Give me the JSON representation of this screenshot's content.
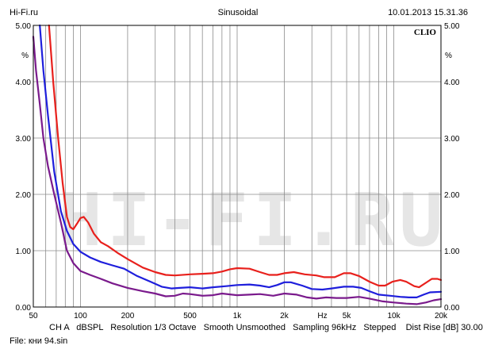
{
  "header": {
    "left": "Hi-Fi.ru",
    "center": "Sinusoidal",
    "right": "10.01.2013 15.31.36"
  },
  "brand": "CLIO",
  "watermark": "HI-FI.RU",
  "footer": {
    "settings": "CH A   dBSPL   Resolution 1/3 Octave   Smooth Unsmoothed   Sampling 96kHz   Stepped    Dist Rise [dB] 30.00",
    "file": "File: кни 94.sin"
  },
  "chart_data": {
    "type": "line",
    "x_scale": "log",
    "xlim": [
      50,
      20000
    ],
    "ylim": [
      0,
      5
    ],
    "x_ticks": [
      {
        "value": 50,
        "label": "50"
      },
      {
        "value": 100,
        "label": "100"
      },
      {
        "value": 200,
        "label": "200"
      },
      {
        "value": 500,
        "label": "500"
      },
      {
        "value": 1000,
        "label": "1k"
      },
      {
        "value": 2000,
        "label": "2k"
      },
      {
        "value": 3500,
        "label": "Hz"
      },
      {
        "value": 5000,
        "label": "5k"
      },
      {
        "value": 10000,
        "label": "10k"
      },
      {
        "value": 20000,
        "label": "20k"
      }
    ],
    "y_ticks": [
      "0.00",
      "1.00",
      "2.00",
      "3.00",
      "4.00",
      "5.00"
    ],
    "y_unit": "%",
    "grid": true,
    "series": [
      {
        "color": "#e8201c",
        "points": [
          [
            63,
            5.0
          ],
          [
            67,
            4.0
          ],
          [
            72,
            3.0
          ],
          [
            77,
            2.2
          ],
          [
            82,
            1.6
          ],
          [
            86,
            1.42
          ],
          [
            90,
            1.38
          ],
          [
            95,
            1.48
          ],
          [
            100,
            1.58
          ],
          [
            105,
            1.6
          ],
          [
            112,
            1.5
          ],
          [
            122,
            1.3
          ],
          [
            135,
            1.15
          ],
          [
            150,
            1.08
          ],
          [
            175,
            0.95
          ],
          [
            200,
            0.85
          ],
          [
            250,
            0.7
          ],
          [
            300,
            0.62
          ],
          [
            350,
            0.57
          ],
          [
            400,
            0.56
          ],
          [
            500,
            0.58
          ],
          [
            600,
            0.59
          ],
          [
            700,
            0.6
          ],
          [
            800,
            0.63
          ],
          [
            900,
            0.67
          ],
          [
            1000,
            0.69
          ],
          [
            1200,
            0.68
          ],
          [
            1400,
            0.62
          ],
          [
            1600,
            0.57
          ],
          [
            1800,
            0.57
          ],
          [
            2000,
            0.6
          ],
          [
            2300,
            0.62
          ],
          [
            2700,
            0.58
          ],
          [
            3200,
            0.56
          ],
          [
            3600,
            0.53
          ],
          [
            4200,
            0.53
          ],
          [
            4800,
            0.6
          ],
          [
            5300,
            0.6
          ],
          [
            6000,
            0.55
          ],
          [
            7000,
            0.45
          ],
          [
            8000,
            0.38
          ],
          [
            8800,
            0.38
          ],
          [
            9800,
            0.45
          ],
          [
            11000,
            0.48
          ],
          [
            12000,
            0.45
          ],
          [
            13500,
            0.37
          ],
          [
            14500,
            0.35
          ],
          [
            16000,
            0.43
          ],
          [
            17500,
            0.5
          ],
          [
            19000,
            0.5
          ],
          [
            20000,
            0.48
          ]
        ]
      },
      {
        "color": "#1e1edc",
        "points": [
          [
            55,
            5.0
          ],
          [
            58,
            4.2
          ],
          [
            62,
            3.4
          ],
          [
            68,
            2.4
          ],
          [
            75,
            1.7
          ],
          [
            82,
            1.35
          ],
          [
            90,
            1.12
          ],
          [
            100,
            0.98
          ],
          [
            115,
            0.88
          ],
          [
            135,
            0.8
          ],
          [
            160,
            0.74
          ],
          [
            190,
            0.68
          ],
          [
            230,
            0.55
          ],
          [
            280,
            0.45
          ],
          [
            330,
            0.36
          ],
          [
            380,
            0.33
          ],
          [
            430,
            0.34
          ],
          [
            500,
            0.35
          ],
          [
            600,
            0.33
          ],
          [
            700,
            0.35
          ],
          [
            850,
            0.37
          ],
          [
            1000,
            0.39
          ],
          [
            1200,
            0.4
          ],
          [
            1400,
            0.38
          ],
          [
            1600,
            0.35
          ],
          [
            1800,
            0.39
          ],
          [
            2000,
            0.44
          ],
          [
            2200,
            0.44
          ],
          [
            2600,
            0.38
          ],
          [
            3000,
            0.32
          ],
          [
            3500,
            0.31
          ],
          [
            4000,
            0.33
          ],
          [
            4800,
            0.36
          ],
          [
            5500,
            0.36
          ],
          [
            6200,
            0.34
          ],
          [
            7000,
            0.28
          ],
          [
            8000,
            0.22
          ],
          [
            9500,
            0.2
          ],
          [
            11000,
            0.18
          ],
          [
            12500,
            0.17
          ],
          [
            14000,
            0.17
          ],
          [
            15500,
            0.22
          ],
          [
            17000,
            0.26
          ],
          [
            20000,
            0.27
          ]
        ]
      },
      {
        "color": "#7a1a8c",
        "points": [
          [
            50,
            4.8
          ],
          [
            52,
            4.2
          ],
          [
            55,
            3.6
          ],
          [
            58,
            3.0
          ],
          [
            62,
            2.5
          ],
          [
            68,
            2.0
          ],
          [
            75,
            1.5
          ],
          [
            82,
            1.0
          ],
          [
            90,
            0.78
          ],
          [
            100,
            0.64
          ],
          [
            115,
            0.57
          ],
          [
            135,
            0.5
          ],
          [
            160,
            0.42
          ],
          [
            200,
            0.34
          ],
          [
            250,
            0.28
          ],
          [
            300,
            0.24
          ],
          [
            350,
            0.19
          ],
          [
            400,
            0.2
          ],
          [
            450,
            0.24
          ],
          [
            500,
            0.23
          ],
          [
            600,
            0.2
          ],
          [
            700,
            0.21
          ],
          [
            800,
            0.24
          ],
          [
            1000,
            0.21
          ],
          [
            1200,
            0.22
          ],
          [
            1400,
            0.23
          ],
          [
            1700,
            0.2
          ],
          [
            2000,
            0.24
          ],
          [
            2400,
            0.22
          ],
          [
            2800,
            0.17
          ],
          [
            3200,
            0.15
          ],
          [
            3700,
            0.17
          ],
          [
            4300,
            0.16
          ],
          [
            5000,
            0.16
          ],
          [
            6000,
            0.18
          ],
          [
            7000,
            0.15
          ],
          [
            8500,
            0.1
          ],
          [
            10000,
            0.08
          ],
          [
            12000,
            0.06
          ],
          [
            14000,
            0.05
          ],
          [
            16000,
            0.08
          ],
          [
            18000,
            0.12
          ],
          [
            20000,
            0.14
          ]
        ]
      }
    ]
  }
}
